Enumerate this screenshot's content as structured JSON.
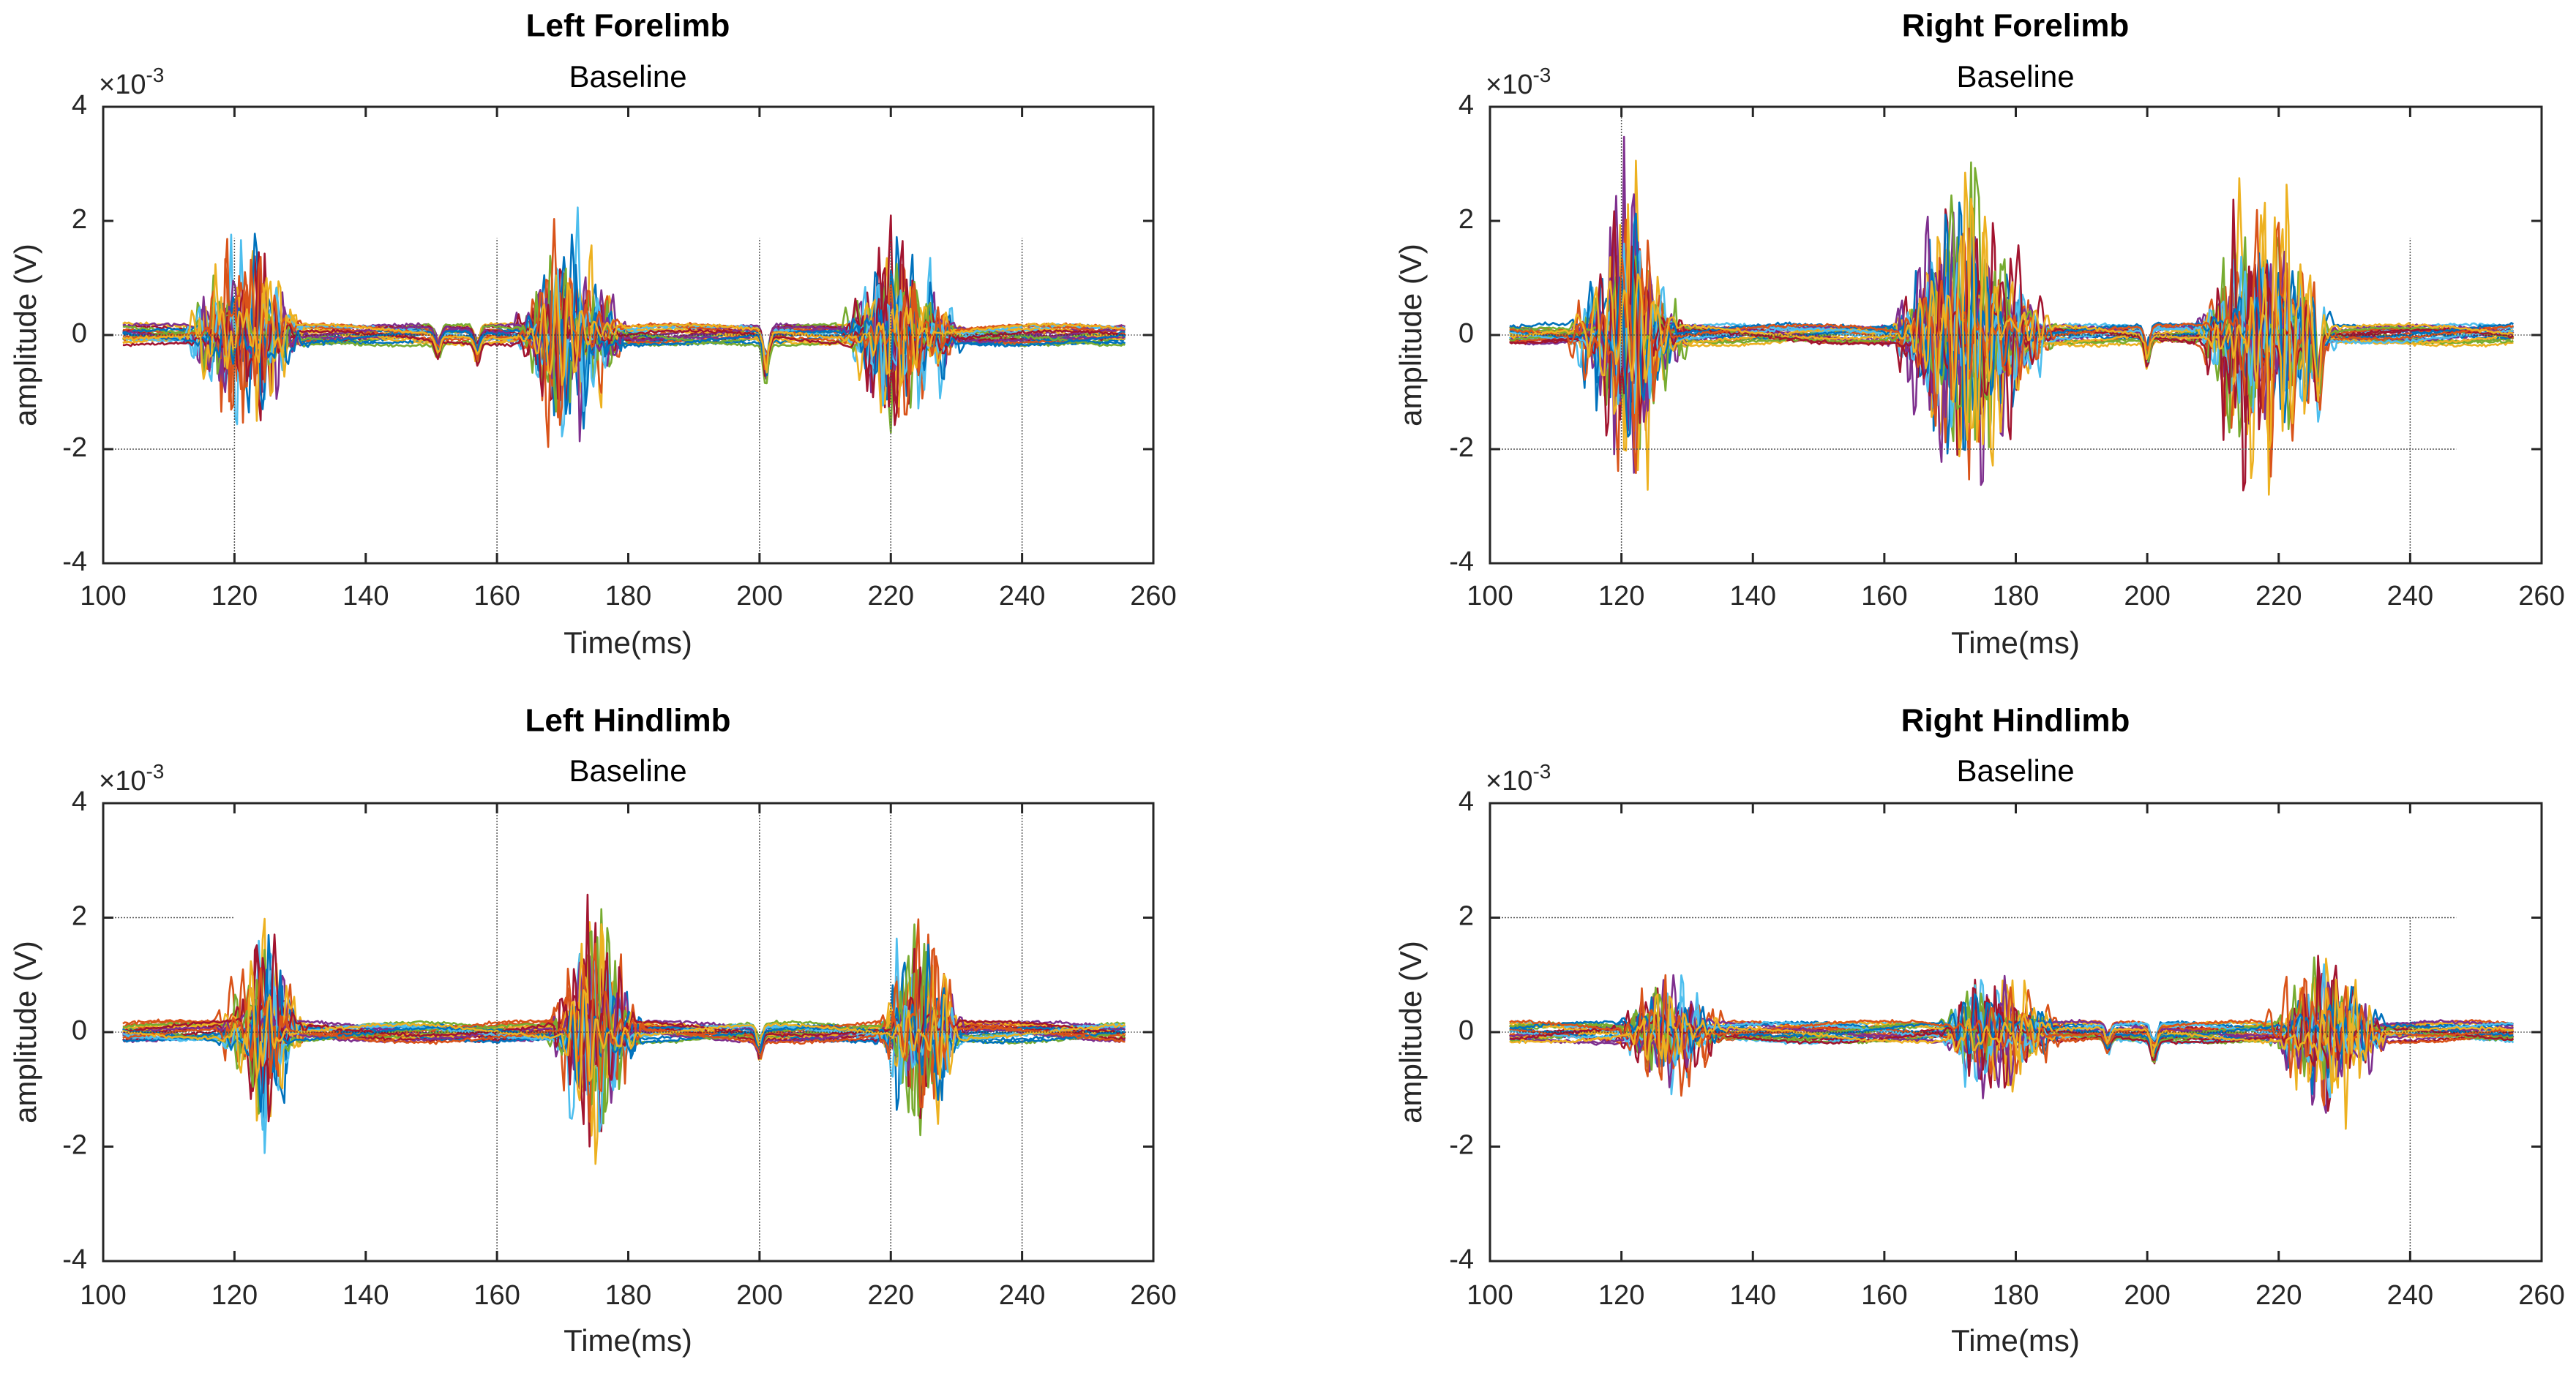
{
  "chart_data": [
    {
      "type": "line",
      "title": "Left Forelimb",
      "subtitle": "Baseline",
      "xlabel": "Time(ms)",
      "ylabel": "amplitude (V)",
      "exponent_label": "×10",
      "exponent": "-3",
      "xlim": [
        100,
        260
      ],
      "ylim": [
        -4,
        4
      ],
      "xticks": [
        "100",
        "120",
        "140",
        "160",
        "180",
        "200",
        "220",
        "240",
        "260"
      ],
      "yticks": [
        "-4",
        "-2",
        "0",
        "2",
        "4"
      ],
      "trace_count": 24,
      "time_range": [
        103,
        256
      ],
      "bursts": [
        [
          112,
          131,
          2.3
        ],
        [
          162,
          180,
          2.6
        ],
        [
          212,
          231,
          2.3
        ]
      ],
      "blips": [
        [
          151,
          -0.35
        ],
        [
          157,
          -0.4
        ],
        [
          201,
          -0.8
        ]
      ],
      "reference_lines": {
        "vertical": [
          [
            120,
            -4,
            1.7
          ],
          [
            160,
            -4,
            1.7
          ],
          [
            200,
            -4,
            1.7
          ],
          [
            220,
            -4,
            1.7
          ],
          [
            240,
            -4,
            1.7
          ]
        ],
        "horizontal": [
          [
            -2,
            100,
            120
          ]
        ]
      }
    },
    {
      "type": "line",
      "title": "Right Forelimb",
      "subtitle": "Baseline",
      "xlabel": "Time(ms)",
      "ylabel": "amplitude (V)",
      "exponent_label": "×10",
      "exponent": "-3",
      "xlim": [
        100,
        260
      ],
      "ylim": [
        -4,
        4
      ],
      "xticks": [
        "100",
        "120",
        "140",
        "160",
        "180",
        "200",
        "220",
        "240",
        "260"
      ],
      "yticks": [
        "-4",
        "-2",
        "0",
        "2",
        "4"
      ],
      "trace_count": 24,
      "time_range": [
        103,
        256
      ],
      "bursts": [
        [
          112,
          130,
          3.6
        ],
        [
          160,
          186,
          3.8
        ],
        [
          207,
          229,
          3.8
        ]
      ],
      "blips": [
        [
          200,
          -0.5
        ],
        [
          226,
          -1.0
        ]
      ],
      "reference_lines": {
        "vertical": [
          [
            120,
            -4,
            4
          ],
          [
            240,
            -4,
            1.7
          ]
        ],
        "horizontal": [
          [
            -2,
            100,
            247
          ]
        ]
      }
    },
    {
      "type": "line",
      "title": "Left Hindlimb",
      "subtitle": "Baseline",
      "xlabel": "Time(ms)",
      "ylabel": "amplitude (V)",
      "exponent_label": "×10",
      "exponent": "-3",
      "xlim": [
        100,
        260
      ],
      "ylim": [
        -4,
        4
      ],
      "xticks": [
        "100",
        "120",
        "140",
        "160",
        "180",
        "200",
        "220",
        "240",
        "260"
      ],
      "yticks": [
        "-4",
        "-2",
        "0",
        "2",
        "4"
      ],
      "trace_count": 24,
      "time_range": [
        103,
        256
      ],
      "bursts": [
        [
          118,
          131,
          2.8
        ],
        [
          168,
          182,
          3.1
        ],
        [
          218,
          231,
          2.9
        ]
      ],
      "blips": [
        [
          200,
          -0.4
        ]
      ],
      "reference_lines": {
        "vertical": [
          [
            160,
            -4,
            4
          ],
          [
            200,
            -4,
            4
          ],
          [
            220,
            -4,
            4
          ],
          [
            240,
            -4,
            4
          ]
        ],
        "horizontal": [
          [
            2,
            100,
            120
          ]
        ]
      }
    },
    {
      "type": "line",
      "title": "Right Hindlimb",
      "subtitle": "Baseline",
      "xlabel": "Time(ms)",
      "ylabel": "amplitude (V)",
      "exponent_label": "×10",
      "exponent": "-3",
      "xlim": [
        100,
        260
      ],
      "ylim": [
        -4,
        4
      ],
      "xticks": [
        "100",
        "120",
        "140",
        "160",
        "180",
        "200",
        "220",
        "240",
        "260"
      ],
      "yticks": [
        "-4",
        "-2",
        "0",
        "2",
        "4"
      ],
      "trace_count": 24,
      "time_range": [
        103,
        256
      ],
      "bursts": [
        [
          118,
          136,
          1.6
        ],
        [
          168,
          187,
          1.6
        ],
        [
          218,
          237,
          2.0
        ]
      ],
      "blips": [
        [
          201,
          -0.5
        ],
        [
          194,
          -0.3
        ]
      ],
      "reference_lines": {
        "vertical": [
          [
            240,
            -4,
            2
          ]
        ],
        "horizontal": [
          [
            2,
            100,
            247
          ]
        ]
      }
    }
  ],
  "colors": [
    "#0072BD",
    "#D95319",
    "#EDB120",
    "#7E2F8E",
    "#77AC30",
    "#4DBEEE",
    "#A2142F"
  ]
}
